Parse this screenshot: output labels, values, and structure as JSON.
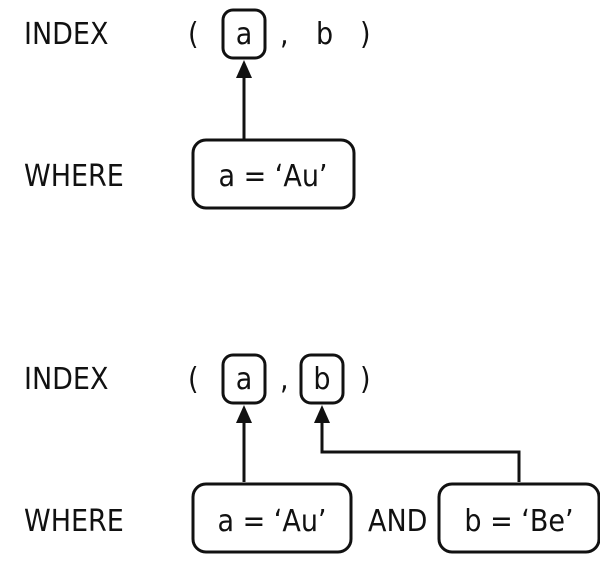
{
  "diagram1": {
    "index_label": "INDEX",
    "open_paren": "(",
    "col_a": "a",
    "comma": ",",
    "col_b": "b",
    "close_paren": ")",
    "where_label": "WHERE",
    "cond_a": "a = ‘Au’"
  },
  "diagram2": {
    "index_label": "INDEX",
    "open_paren": "(",
    "col_a": "a",
    "comma": ",",
    "col_b": "b",
    "close_paren": ")",
    "where_label": "WHERE",
    "cond_a": "a = ‘Au’",
    "and_label": "AND",
    "cond_b": "b = ‘Be’"
  }
}
